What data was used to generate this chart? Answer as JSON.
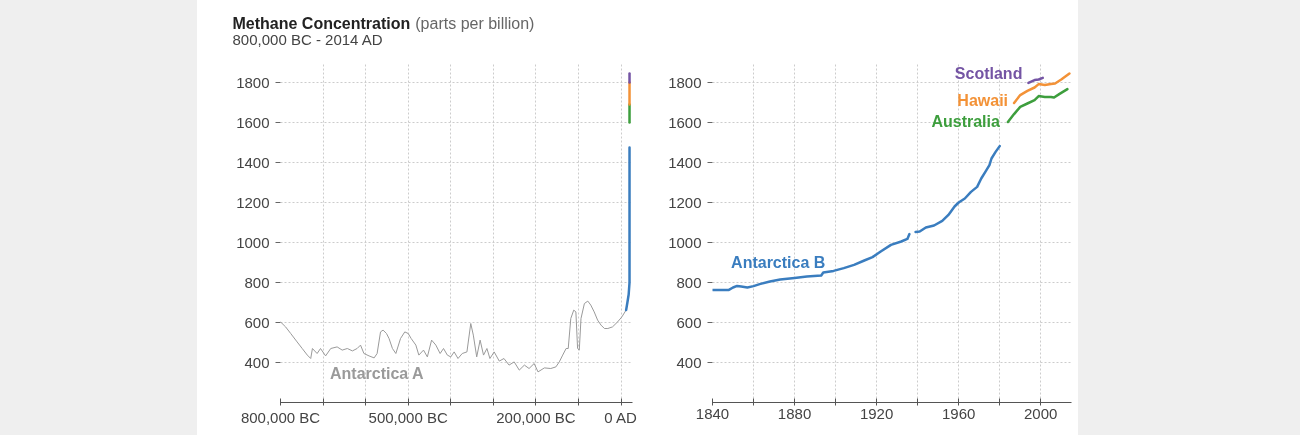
{
  "chart_data": [
    {
      "type": "line",
      "title": "Methane Concentration",
      "ylabel": "(parts per billion)",
      "subtitle": "800,000 BC - 2014 AD",
      "xlim": [
        -800000,
        27000
      ],
      "xticks": [
        {
          "value": -800000,
          "label": "800,000 BC"
        },
        {
          "value": -700000,
          "label": null
        },
        {
          "value": -600000,
          "label": null
        },
        {
          "value": -500000,
          "label": "500,000 BC"
        },
        {
          "value": -400000,
          "label": null
        },
        {
          "value": -300000,
          "label": null
        },
        {
          "value": -200000,
          "label": "200,000 BC"
        },
        {
          "value": -100000,
          "label": null
        },
        {
          "value": 0,
          "label": "0 AD"
        }
      ],
      "ylim": [
        200,
        1900
      ],
      "yticks": [
        400,
        600,
        800,
        1000,
        1200,
        1400,
        1600,
        1800
      ],
      "grid": true,
      "series": [
        {
          "name": "Antarctica A",
          "color": "#9a9a9a",
          "x": [
            -800000,
            -788000,
            -776000,
            -761000,
            -749000,
            -737000,
            -729000,
            -725000,
            -714000,
            -706000,
            -694000,
            -682000,
            -667000,
            -655000,
            -643000,
            -631000,
            -620000,
            -612000,
            -604000,
            -592000,
            -580000,
            -573000,
            -565000,
            -559000,
            -551000,
            -545000,
            -537000,
            -529000,
            -518000,
            -508000,
            -500000,
            -493000,
            -482000,
            -475000,
            -464000,
            -455000,
            -445000,
            -435000,
            -425000,
            -417000,
            -408000,
            -400000,
            -392000,
            -383000,
            -373000,
            -362000,
            -353000,
            -347000,
            -339000,
            -331000,
            -323000,
            -315000,
            -308000,
            -298000,
            -286000,
            -275000,
            -263000,
            -251000,
            -239000,
            -227000,
            -216000,
            -204000,
            -195000,
            -180000,
            -165000,
            -153000,
            -145000,
            -137000,
            -129000,
            -124000,
            -118000,
            -111000,
            -106000,
            -102000,
            -98000,
            -94000,
            -86000,
            -78000,
            -71000,
            -63000,
            -55000,
            -47000,
            -39000,
            -31000,
            -20000,
            -8000,
            2000,
            12000
          ],
          "values": [
            603,
            578,
            545,
            503,
            470,
            437,
            420,
            470,
            445,
            470,
            433,
            470,
            478,
            462,
            470,
            458,
            470,
            487,
            445,
            433,
            423,
            445,
            553,
            562,
            545,
            520,
            470,
            445,
            520,
            553,
            545,
            520,
            487,
            437,
            462,
            428,
            512,
            487,
            445,
            470,
            437,
            428,
            453,
            420,
            445,
            453,
            595,
            537,
            428,
            512,
            437,
            470,
            420,
            453,
            407,
            420,
            387,
            403,
            362,
            387,
            370,
            395,
            353,
            373,
            370,
            378,
            403,
            437,
            470,
            470,
            620,
            662,
            653,
            470,
            462,
            620,
            695,
            707,
            687,
            653,
            612,
            587,
            570,
            570,
            578,
            603,
            628,
            662
          ]
        },
        {
          "color": "#3a7dbf",
          "x": [
            12000,
            15000,
            18000,
            20000,
            20000
          ],
          "values": [
            662,
            700,
            740,
            800,
            1475
          ]
        },
        {
          "color": "#3d9e3d",
          "x": [
            20000,
            20000
          ],
          "values": [
            1600,
            1690
          ]
        },
        {
          "color": "#f39237",
          "x": [
            20000,
            20000
          ],
          "values": [
            1690,
            1800
          ]
        },
        {
          "color": "#7454a4",
          "x": [
            20000,
            20000
          ],
          "values": [
            1800,
            1845
          ]
        }
      ]
    },
    {
      "type": "line",
      "xlim": [
        1840,
        2015
      ],
      "xticks": [
        1840,
        {
          "value": 1860,
          "label": null
        },
        1880,
        {
          "value": 1900,
          "label": null
        },
        1920,
        {
          "value": 1940,
          "label": null
        },
        1960,
        {
          "value": 1980,
          "label": null
        },
        2000
      ],
      "ylim": [
        200,
        1900
      ],
      "yticks": [
        400,
        600,
        800,
        1000,
        1200,
        1400,
        1600,
        1800
      ],
      "grid": true,
      "series": [
        {
          "name": "Antarctica B",
          "color": "#3a7dbf",
          "x": [
            1840,
            1846,
            1848,
            1850,
            1852,
            1854,
            1857,
            1860,
            1863,
            1868,
            1873,
            1880,
            1886,
            1893,
            1894,
            1899,
            1904,
            1909,
            1914,
            1918,
            1922,
            1927,
            1932,
            1935,
            1936,
            1937.5,
            1939,
            1941,
            1944,
            1948,
            1952,
            1955,
            1958,
            1960,
            1963,
            1966,
            1969,
            1971,
            1973,
            1975,
            1976,
            1978,
            1980
          ],
          "values": [
            763,
            762,
            763,
            775,
            783,
            780,
            775,
            782,
            792,
            805,
            815,
            823,
            830,
            835,
            850,
            858,
            872,
            888,
            910,
            927,
            955,
            988,
            1005,
            1018,
            1042,
            null,
            1052,
            1055,
            1075,
            1085,
            1108,
            1138,
            1180,
            1200,
            1220,
            1253,
            1278,
            1320,
            1353,
            1387,
            1420,
            1453,
            1482
          ]
        },
        {
          "name": "Australia",
          "color": "#3d9e3d",
          "x": [
            1984,
            1987,
            1990,
            1993.5,
            1997,
            1999,
            2002,
            2005,
            2006.5,
            2009,
            2013
          ],
          "values": [
            1603,
            1642,
            1678,
            1695,
            1712,
            1732,
            1728,
            1728,
            1725,
            1742,
            1767
          ]
        },
        {
          "name": "Hawaii",
          "color": "#f39237",
          "x": [
            1987,
            1990,
            1993.5,
            1997,
            1999,
            2002,
            2005,
            2007,
            2010,
            2014
          ],
          "values": [
            1698,
            1737,
            1758,
            1775,
            1792,
            1787,
            1792,
            1795,
            1815,
            1845
          ]
        },
        {
          "name": "Scotland",
          "color": "#7454a4",
          "x": [
            1994,
            1997,
            1999,
            2001
          ],
          "values": [
            1798,
            1812,
            1815,
            1823
          ]
        }
      ]
    }
  ]
}
